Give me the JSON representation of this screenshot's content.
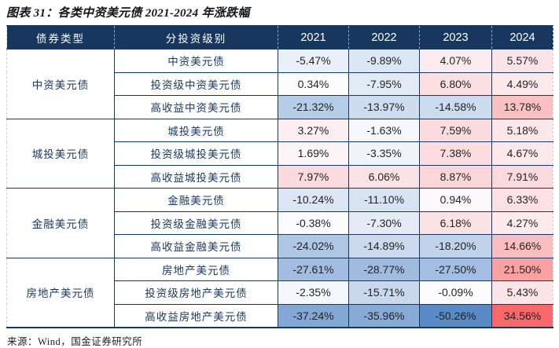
{
  "title": "图表 31：各类中资美元债 2021-2024 年涨跌幅",
  "source": "来源：Wind，国金证券研究所",
  "colors": {
    "header_bg": "#17375E",
    "border": "#17375E",
    "label_text": "#17375E",
    "scale_min_color": "#5A8AC6",
    "scale_mid_color": "#FCFCFF",
    "scale_max_color": "#F8696B"
  },
  "chart_data": {
    "type": "table",
    "title": "图表 31：各类中资美元债 2021-2024 年涨跌幅",
    "unit": "%",
    "columns": [
      "债券类型",
      "分投资级别",
      "2021",
      "2022",
      "2023",
      "2024"
    ],
    "heatmap": {
      "min_value": -50.26,
      "mid_value": 0,
      "max_value": 34.56,
      "min_color": "#5A8AC6",
      "mid_color": "#FCFCFF",
      "max_color": "#F8696B"
    },
    "groups": [
      {
        "type": "中资美元债",
        "rows": [
          {
            "label": "中资美元债",
            "values": [
              -5.47,
              -9.89,
              4.07,
              5.57
            ]
          },
          {
            "label": "投资级中资美元债",
            "values": [
              0.34,
              -7.95,
              6.8,
              4.49
            ]
          },
          {
            "label": "高收益中资美元债",
            "values": [
              -21.32,
              -13.97,
              -14.58,
              13.78
            ]
          }
        ]
      },
      {
        "type": "城投美元债",
        "rows": [
          {
            "label": "城投美元债",
            "values": [
              3.27,
              -1.63,
              7.59,
              5.18
            ]
          },
          {
            "label": "投资级城投美元债",
            "values": [
              1.69,
              -3.35,
              7.38,
              4.67
            ]
          },
          {
            "label": "高收益城投美元债",
            "values": [
              7.97,
              6.06,
              8.87,
              7.91
            ]
          }
        ]
      },
      {
        "type": "金融美元债",
        "rows": [
          {
            "label": "金融美元债",
            "values": [
              -10.24,
              -11.1,
              0.94,
              6.33
            ]
          },
          {
            "label": "投资级金融美元债",
            "values": [
              -0.38,
              -7.3,
              6.18,
              4.27
            ]
          },
          {
            "label": "高收益金融美元债",
            "values": [
              -24.02,
              -14.89,
              -18.2,
              14.66
            ]
          }
        ]
      },
      {
        "type": "房地产美元债",
        "rows": [
          {
            "label": "房地产美元债",
            "values": [
              -27.61,
              -28.77,
              -27.5,
              21.5
            ]
          },
          {
            "label": "投资级房地产美元债",
            "values": [
              -2.35,
              -15.71,
              -0.09,
              5.43
            ]
          },
          {
            "label": "高收益房地产美元债",
            "values": [
              -37.24,
              -35.96,
              -50.26,
              34.56
            ]
          }
        ]
      }
    ]
  }
}
